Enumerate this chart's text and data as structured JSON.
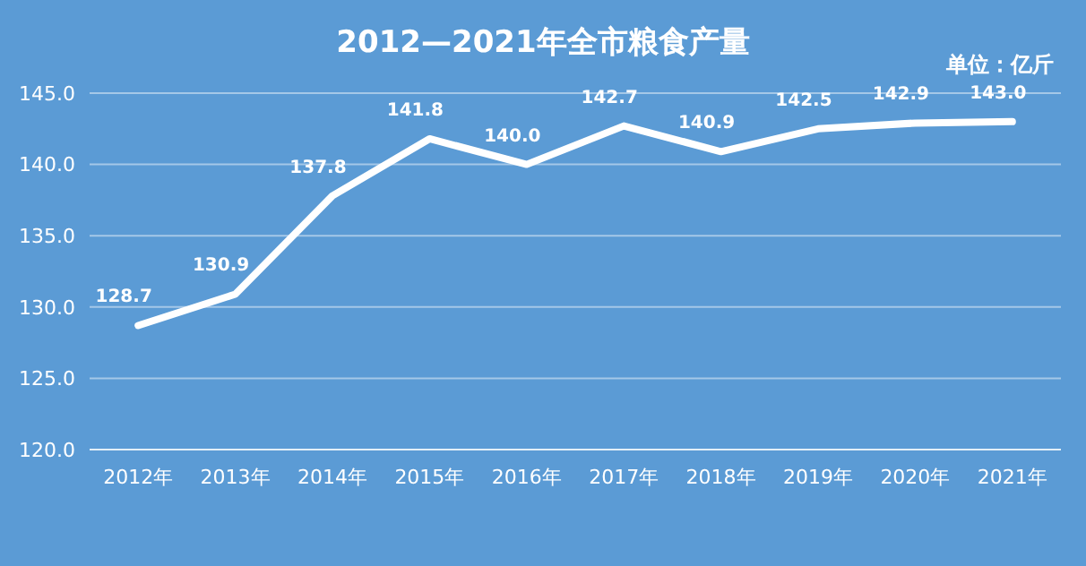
{
  "chart_data": {
    "type": "line",
    "title": "2012—2021年全市粮食产量",
    "annotations": [
      "单位：亿斤"
    ],
    "categories": [
      "2012年",
      "2013年",
      "2014年",
      "2015年",
      "2016年",
      "2017年",
      "2018年",
      "2019年",
      "2020年",
      "2021年"
    ],
    "series": [
      {
        "color": "#ffffff",
        "values": [
          128.7,
          130.9,
          137.8,
          141.8,
          140.0,
          142.7,
          140.9,
          142.5,
          142.9,
          143.0
        ],
        "value_labels": [
          "128.7",
          "130.9",
          "137.8",
          "141.8",
          "140.0",
          "142.7",
          "140.9",
          "142.5",
          "142.9",
          "143.0"
        ]
      }
    ],
    "ylim": [
      120,
      145
    ],
    "yticks": [
      {
        "value": 120,
        "label": "120.0"
      },
      {
        "value": 125,
        "label": "125.0"
      },
      {
        "value": 130,
        "label": "130.0"
      },
      {
        "value": 135,
        "label": "135.0"
      },
      {
        "value": 140,
        "label": "140.0"
      },
      {
        "value": 145,
        "label": "145.0"
      }
    ],
    "grid": "y",
    "marker": "none",
    "line_style": "solid"
  }
}
